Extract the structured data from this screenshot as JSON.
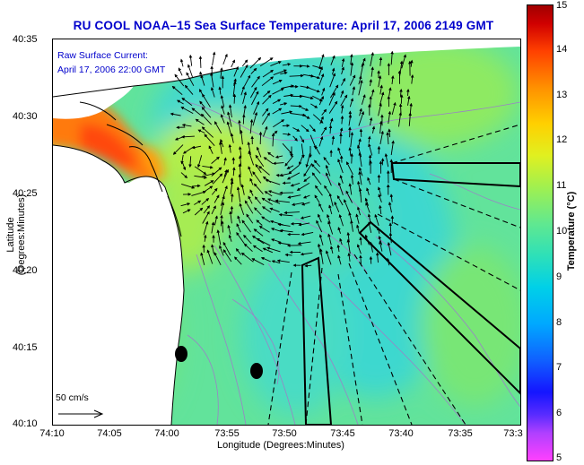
{
  "title": "RU COOL  NOAA–15  Sea Surface Temperature:  April 17, 2006 2149 GMT",
  "current": {
    "line1": "Raw Surface Current:",
    "line2": "April 17, 2006 22:00 GMT"
  },
  "scale_label": "50 cm/s",
  "axes": {
    "xlabel": "Longitude (Degrees:Minutes)",
    "ylabel": "Latitude (Degrees:Minutes)",
    "xticks": [
      "74:10",
      "74:05",
      "74:00",
      "73:55",
      "73:50",
      "73:45",
      "73:40",
      "73:35",
      "73:3"
    ],
    "yticks": [
      "40:35",
      "40:30",
      "40:25",
      "40:20",
      "40:15",
      "40:10"
    ]
  },
  "colorbar": {
    "label": "Temperature (°C)",
    "ticks": [
      "15",
      "14",
      "13",
      "12",
      "11",
      "10",
      "9",
      "8",
      "7",
      "6",
      "5"
    ],
    "min": 5,
    "max": 15
  },
  "colors": {
    "title": "#0000cc",
    "land": "#ffffff",
    "ocean_base": "#5fe39a"
  }
}
